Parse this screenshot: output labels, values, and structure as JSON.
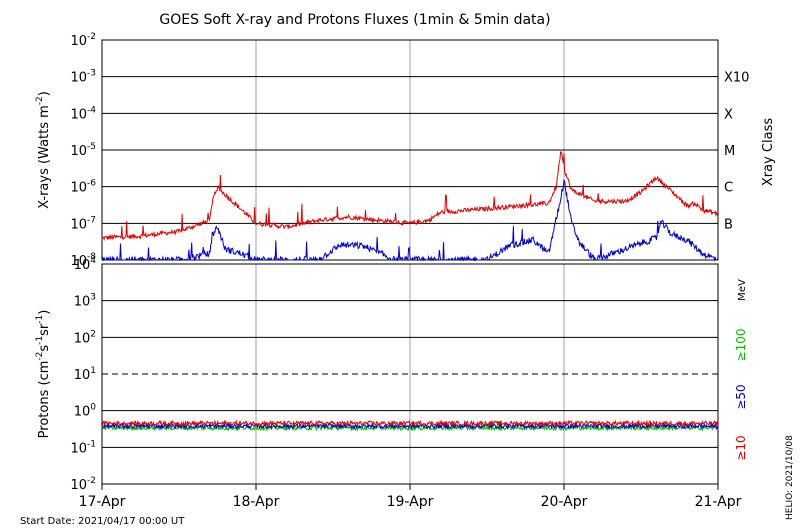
{
  "title": "GOES Soft X-ray and Protons Fluxes   (1min & 5min data)",
  "start_date": "Start Date: 2021/04/17 00:00 UT",
  "stamp": "HELIO: 2021/10/08",
  "x_ticks": [
    "17-Apr",
    "18-Apr",
    "19-Apr",
    "20-Apr",
    "21-Apr"
  ],
  "colors": {
    "red": "#e00000",
    "blue": "#0000d0",
    "green": "#00c000",
    "grid": "#a0a0a0"
  },
  "xray_panel": {
    "ylabel_parts": [
      "X-rays (Watts m",
      "-2",
      ")"
    ],
    "yticks": [
      {
        "base": "10",
        "exp": "-8"
      },
      {
        "base": "10",
        "exp": "-7"
      },
      {
        "base": "10",
        "exp": "-6"
      },
      {
        "base": "10",
        "exp": "-5"
      },
      {
        "base": "10",
        "exp": "-4"
      },
      {
        "base": "10",
        "exp": "-3"
      },
      {
        "base": "10",
        "exp": "-2"
      }
    ],
    "class_labels": [
      "B",
      "C",
      "M",
      "X",
      "X10"
    ],
    "class_axis_title": "Xray Class"
  },
  "proton_panel": {
    "ylabel_parts": [
      "Protons (cm",
      "-2",
      "s",
      "-1",
      "sr",
      "-1",
      ")"
    ],
    "yticks": [
      {
        "base": "10",
        "exp": "-2"
      },
      {
        "base": "10",
        "exp": "-1"
      },
      {
        "base": "10",
        "exp": "0"
      },
      {
        "base": "10",
        "exp": "1"
      },
      {
        "base": "10",
        "exp": "2"
      },
      {
        "base": "10",
        "exp": "3"
      },
      {
        "base": "10",
        "exp": "4"
      }
    ],
    "unit": "MeV",
    "energy_labels": [
      "≥10",
      "≥50",
      "≥100"
    ]
  },
  "chart_data": [
    {
      "type": "line",
      "title": "GOES Soft X-ray and Protons Fluxes   (1min & 5min data)",
      "xlabel": "",
      "ylabel": "X-rays (Watts m-2)",
      "x_range": [
        "2021-04-17",
        "2021-04-21"
      ],
      "y_scale": "log",
      "ylim": [
        1e-08,
        0.01
      ],
      "grid": true,
      "series": [
        {
          "color": "red",
          "x_days": [
            0,
            0.25,
            0.5,
            0.7,
            0.72,
            0.75,
            0.8,
            0.9,
            1.0,
            1.2,
            1.4,
            1.6,
            1.8,
            2.0,
            2.12,
            2.2,
            2.5,
            2.7,
            2.9,
            2.95,
            2.98,
            3.0,
            3.05,
            3.2,
            3.4,
            3.5,
            3.6,
            3.8,
            3.85,
            3.9,
            4.0
          ],
          "y": [
            4e-08,
            4.5e-08,
            6e-08,
            1.2e-07,
            5e-07,
            9.5e-07,
            6e-07,
            2.5e-07,
            1e-07,
            8e-08,
            1.2e-07,
            1.5e-07,
            1.2e-07,
            1e-07,
            1.2e-07,
            2e-07,
            2.5e-07,
            3e-07,
            3.5e-07,
            1e-06,
            1e-05,
            3e-06,
            8e-07,
            4e-07,
            4e-07,
            7e-07,
            1.8e-06,
            3e-07,
            3.5e-07,
            2.3e-07,
            1.8e-07
          ]
        },
        {
          "color": "blue",
          "x_days": [
            0,
            0.5,
            0.7,
            0.72,
            0.75,
            0.8,
            0.9,
            1.0,
            1.4,
            1.55,
            1.7,
            1.9,
            2.0,
            2.5,
            2.65,
            2.8,
            2.9,
            2.98,
            3.0,
            3.05,
            3.1,
            3.2,
            3.4,
            3.6,
            3.63,
            3.7,
            3.8,
            3.9,
            4.0
          ],
          "y": [
            1e-08,
            1e-08,
            1.5e-08,
            5e-08,
            8e-08,
            2e-08,
            1.5e-08,
            1e-08,
            1e-08,
            2.6e-08,
            2.4e-08,
            1e-08,
            1e-08,
            1e-08,
            2.5e-08,
            3.5e-08,
            1.5e-08,
            5e-07,
            1.5e-06,
            1e-07,
            3e-08,
            1e-08,
            2e-08,
            4e-08,
            1.1e-07,
            5e-08,
            3.5e-08,
            1.5e-08,
            1e-08
          ]
        }
      ]
    },
    {
      "type": "line",
      "xlabel": "",
      "ylabel": "Protons (cm-2s-1sr-1)",
      "x_range": [
        "2021-04-17",
        "2021-04-21"
      ],
      "y_scale": "log",
      "ylim": [
        0.01,
        10000
      ],
      "threshold": 10,
      "grid": true,
      "series": [
        {
          "name": "≥10",
          "color": "red",
          "x_days": [
            0,
            4
          ],
          "y": [
            0.45,
            0.45
          ]
        },
        {
          "name": "≥50",
          "color": "blue",
          "x_days": [
            0,
            4
          ],
          "y": [
            0.38,
            0.38
          ]
        },
        {
          "name": "≥100",
          "color": "green",
          "x_days": [
            0,
            4
          ],
          "y": [
            0.34,
            0.34
          ]
        }
      ]
    }
  ]
}
